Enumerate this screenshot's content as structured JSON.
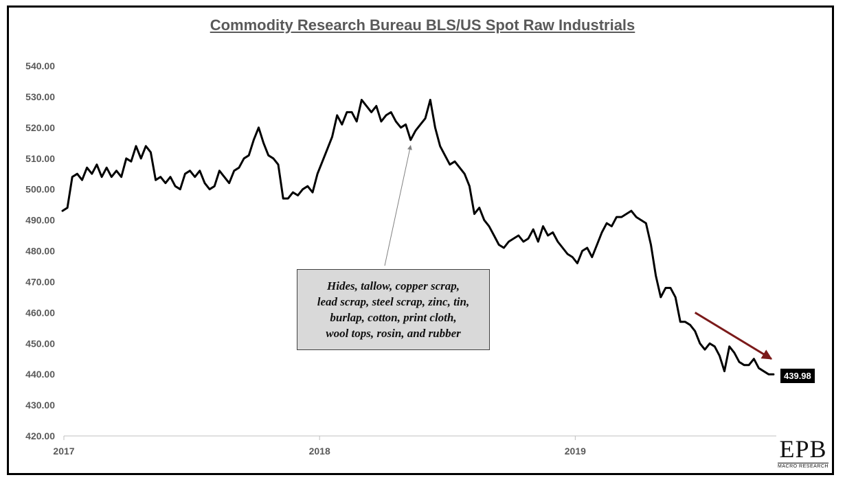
{
  "chart_data": {
    "type": "line",
    "title": "Commodity Research Bureau BLS/US Spot Raw Industrials",
    "xlabel": "",
    "ylabel": "",
    "ylim": [
      420,
      540
    ],
    "yticks": [
      "540.00",
      "530.00",
      "520.00",
      "510.00",
      "500.00",
      "490.00",
      "480.00",
      "470.00",
      "460.00",
      "450.00",
      "440.00",
      "430.00",
      "420.00"
    ],
    "xticks": [
      "2017",
      "2018",
      "2019"
    ],
    "grid": false,
    "x_start": "2017-01-01",
    "x_end": "2019-10-15",
    "series": [
      {
        "name": "",
        "color": "#000000",
        "points": [
          [
            "2016-12-30",
            493
          ],
          [
            "2017-01-06",
            494
          ],
          [
            "2017-01-13",
            504
          ],
          [
            "2017-01-20",
            505
          ],
          [
            "2017-01-27",
            503
          ],
          [
            "2017-02-03",
            507
          ],
          [
            "2017-02-10",
            505
          ],
          [
            "2017-02-17",
            508
          ],
          [
            "2017-02-24",
            504
          ],
          [
            "2017-03-03",
            507
          ],
          [
            "2017-03-10",
            504
          ],
          [
            "2017-03-17",
            506
          ],
          [
            "2017-03-24",
            504
          ],
          [
            "2017-03-31",
            510
          ],
          [
            "2017-04-07",
            509
          ],
          [
            "2017-04-14",
            514
          ],
          [
            "2017-04-21",
            510
          ],
          [
            "2017-04-28",
            514
          ],
          [
            "2017-05-05",
            512
          ],
          [
            "2017-05-12",
            503
          ],
          [
            "2017-05-19",
            504
          ],
          [
            "2017-05-26",
            502
          ],
          [
            "2017-06-02",
            504
          ],
          [
            "2017-06-09",
            501
          ],
          [
            "2017-06-16",
            500
          ],
          [
            "2017-06-23",
            505
          ],
          [
            "2017-06-30",
            506
          ],
          [
            "2017-07-07",
            504
          ],
          [
            "2017-07-14",
            506
          ],
          [
            "2017-07-21",
            502
          ],
          [
            "2017-07-28",
            500
          ],
          [
            "2017-08-04",
            501
          ],
          [
            "2017-08-11",
            506
          ],
          [
            "2017-08-18",
            504
          ],
          [
            "2017-08-25",
            502
          ],
          [
            "2017-09-01",
            506
          ],
          [
            "2017-09-08",
            507
          ],
          [
            "2017-09-15",
            510
          ],
          [
            "2017-09-22",
            511
          ],
          [
            "2017-09-29",
            516
          ],
          [
            "2017-10-06",
            520
          ],
          [
            "2017-10-13",
            515
          ],
          [
            "2017-10-20",
            511
          ],
          [
            "2017-10-27",
            510
          ],
          [
            "2017-11-03",
            508
          ],
          [
            "2017-11-10",
            497
          ],
          [
            "2017-11-17",
            497
          ],
          [
            "2017-11-24",
            499
          ],
          [
            "2017-12-01",
            498
          ],
          [
            "2017-12-08",
            500
          ],
          [
            "2017-12-15",
            501
          ],
          [
            "2017-12-22",
            499
          ],
          [
            "2017-12-29",
            505
          ],
          [
            "2018-01-05",
            509
          ],
          [
            "2018-01-12",
            513
          ],
          [
            "2018-01-19",
            517
          ],
          [
            "2018-01-26",
            524
          ],
          [
            "2018-02-02",
            521
          ],
          [
            "2018-02-09",
            525
          ],
          [
            "2018-02-16",
            525
          ],
          [
            "2018-02-23",
            522
          ],
          [
            "2018-03-02",
            529
          ],
          [
            "2018-03-09",
            527
          ],
          [
            "2018-03-16",
            525
          ],
          [
            "2018-03-23",
            527
          ],
          [
            "2018-03-30",
            522
          ],
          [
            "2018-04-06",
            524
          ],
          [
            "2018-04-13",
            525
          ],
          [
            "2018-04-20",
            522
          ],
          [
            "2018-04-27",
            520
          ],
          [
            "2018-05-04",
            521
          ],
          [
            "2018-05-11",
            516
          ],
          [
            "2018-05-18",
            519
          ],
          [
            "2018-05-25",
            521
          ],
          [
            "2018-06-01",
            523
          ],
          [
            "2018-06-08",
            529
          ],
          [
            "2018-06-15",
            520
          ],
          [
            "2018-06-22",
            514
          ],
          [
            "2018-06-29",
            511
          ],
          [
            "2018-07-06",
            508
          ],
          [
            "2018-07-13",
            509
          ],
          [
            "2018-07-20",
            507
          ],
          [
            "2018-07-27",
            505
          ],
          [
            "2018-08-03",
            501
          ],
          [
            "2018-08-10",
            492
          ],
          [
            "2018-08-17",
            494
          ],
          [
            "2018-08-24",
            490
          ],
          [
            "2018-08-31",
            488
          ],
          [
            "2018-09-07",
            485
          ],
          [
            "2018-09-14",
            482
          ],
          [
            "2018-09-21",
            481
          ],
          [
            "2018-09-28",
            483
          ],
          [
            "2018-10-05",
            484
          ],
          [
            "2018-10-12",
            485
          ],
          [
            "2018-10-19",
            483
          ],
          [
            "2018-10-26",
            484
          ],
          [
            "2018-11-02",
            487
          ],
          [
            "2018-11-09",
            483
          ],
          [
            "2018-11-16",
            488
          ],
          [
            "2018-11-23",
            485
          ],
          [
            "2018-11-30",
            486
          ],
          [
            "2018-12-07",
            483
          ],
          [
            "2018-12-14",
            481
          ],
          [
            "2018-12-21",
            479
          ],
          [
            "2018-12-28",
            478
          ],
          [
            "2019-01-04",
            476
          ],
          [
            "2019-01-11",
            480
          ],
          [
            "2019-01-18",
            481
          ],
          [
            "2019-01-25",
            478
          ],
          [
            "2019-02-01",
            482
          ],
          [
            "2019-02-08",
            486
          ],
          [
            "2019-02-15",
            489
          ],
          [
            "2019-02-22",
            488
          ],
          [
            "2019-03-01",
            491
          ],
          [
            "2019-03-08",
            491
          ],
          [
            "2019-03-15",
            492
          ],
          [
            "2019-03-22",
            493
          ],
          [
            "2019-03-29",
            491
          ],
          [
            "2019-04-05",
            490
          ],
          [
            "2019-04-12",
            489
          ],
          [
            "2019-04-19",
            482
          ],
          [
            "2019-04-26",
            472
          ],
          [
            "2019-05-03",
            465
          ],
          [
            "2019-05-10",
            468
          ],
          [
            "2019-05-17",
            468
          ],
          [
            "2019-05-24",
            465
          ],
          [
            "2019-05-31",
            457
          ],
          [
            "2019-06-07",
            457
          ],
          [
            "2019-06-14",
            456
          ],
          [
            "2019-06-21",
            454
          ],
          [
            "2019-06-28",
            450
          ],
          [
            "2019-07-05",
            448
          ],
          [
            "2019-07-12",
            450
          ],
          [
            "2019-07-19",
            449
          ],
          [
            "2019-07-26",
            446
          ],
          [
            "2019-08-02",
            441
          ],
          [
            "2019-08-09",
            449
          ],
          [
            "2019-08-16",
            447
          ],
          [
            "2019-08-23",
            444
          ],
          [
            "2019-08-30",
            443
          ],
          [
            "2019-09-06",
            443
          ],
          [
            "2019-09-13",
            445
          ],
          [
            "2019-09-20",
            442
          ],
          [
            "2019-09-27",
            441
          ],
          [
            "2019-10-04",
            440
          ],
          [
            "2019-10-11",
            439.98
          ]
        ]
      }
    ],
    "last_value_label": "439.98",
    "annotation": {
      "lines": [
        "Hides, tallow, copper scrap,",
        "lead scrap, steel scrap, zinc, tin,",
        "burlap, cotton, print cloth,",
        "wool tops, rosin, and rubber"
      ],
      "arrow_color": "#808080",
      "points_to": [
        "2018-05-11",
        516
      ]
    },
    "trend_arrow": {
      "color": "#7b1a1a",
      "from": [
        "2019-06-21",
        460
      ],
      "to": [
        "2019-10-08",
        445
      ]
    }
  },
  "logo": {
    "name": "EPB",
    "tagline": "MACRO RESEARCH"
  }
}
